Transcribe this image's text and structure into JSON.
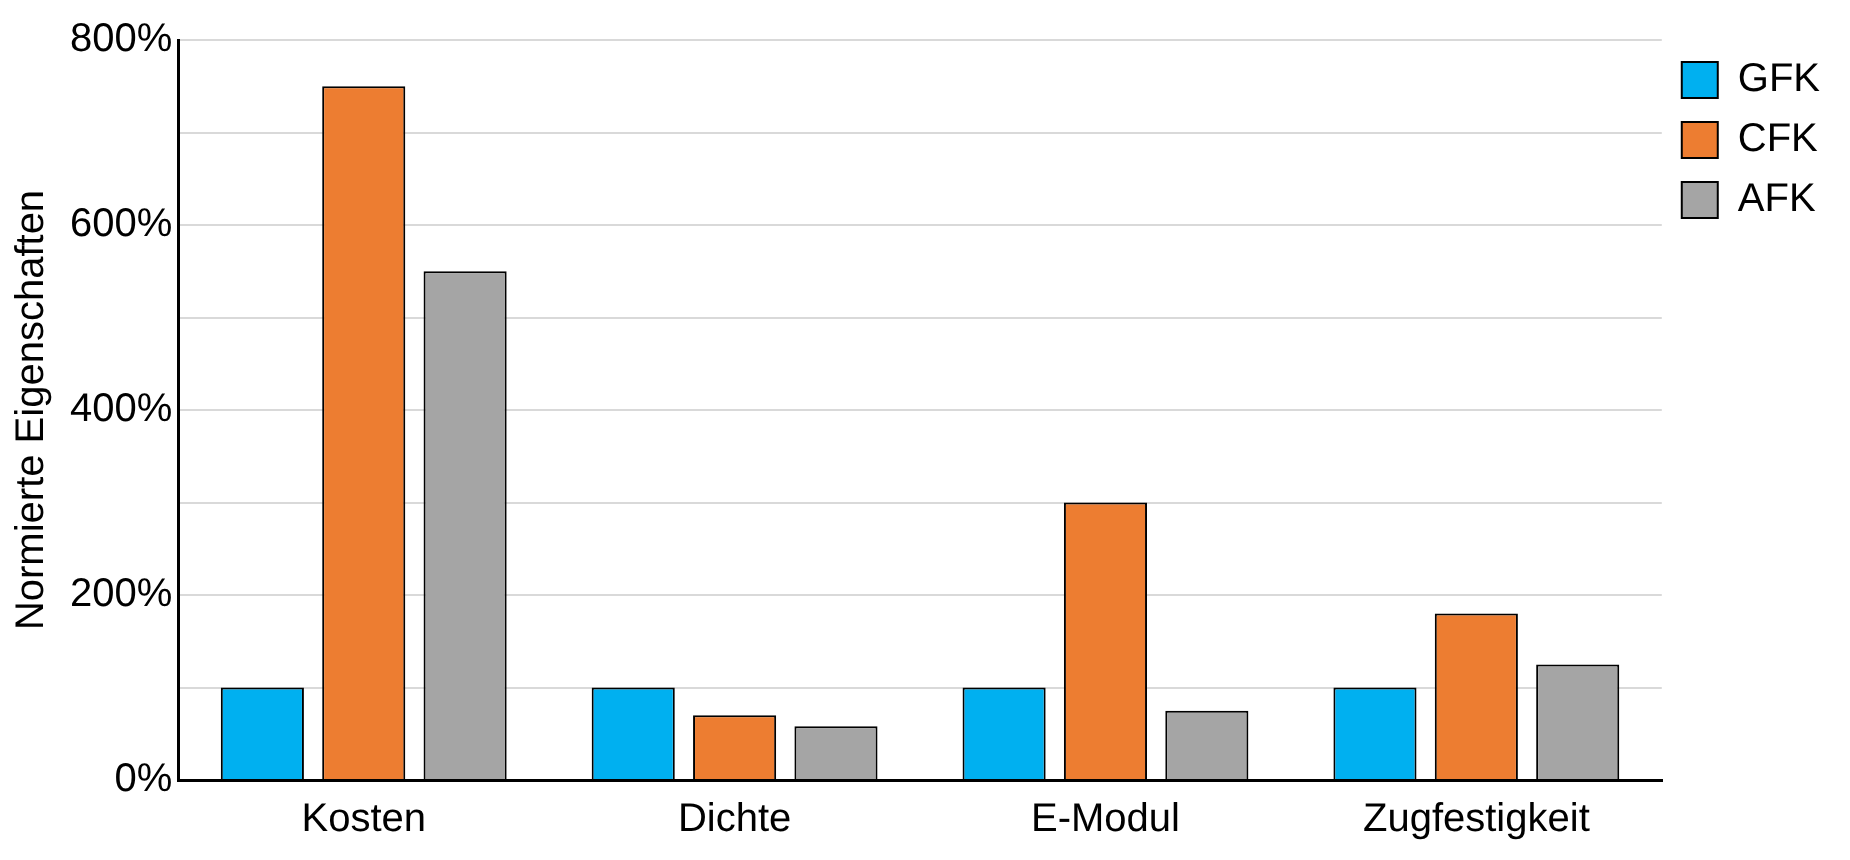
{
  "chart_data": {
    "type": "bar",
    "ylabel": "Normierte Eigenschaften",
    "categories": [
      "Kosten",
      "Dichte",
      "E-Modul",
      "Zugfestigkeit"
    ],
    "series": [
      {
        "name": "GFK",
        "color": "#00b0f0",
        "values": [
          100,
          100,
          100,
          100
        ]
      },
      {
        "name": "CFK",
        "color": "#ed7d31",
        "values": [
          750,
          70,
          300,
          180
        ]
      },
      {
        "name": "AFK",
        "color": "#a5a5a5",
        "values": [
          550,
          58,
          75,
          125
        ]
      }
    ],
    "ylim": [
      0,
      800
    ],
    "yticks": [
      {
        "value": 0,
        "label": "0%"
      },
      {
        "value": 100,
        "label": null
      },
      {
        "value": 200,
        "label": "200%"
      },
      {
        "value": 300,
        "label": null
      },
      {
        "value": 400,
        "label": "400%"
      },
      {
        "value": 500,
        "label": null
      },
      {
        "value": 600,
        "label": "600%"
      },
      {
        "value": 700,
        "label": null
      },
      {
        "value": 800,
        "label": "800%"
      }
    ],
    "grid": "y",
    "legend": "top right"
  }
}
